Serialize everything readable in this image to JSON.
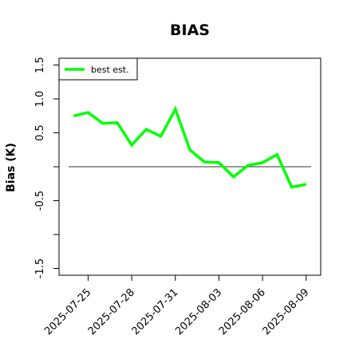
{
  "chart_data": {
    "type": "line",
    "title": "BIAS",
    "xlabel": "",
    "ylabel": "Bias (K)",
    "ylim": [
      -1.6,
      1.6
    ],
    "yticks": [
      -1.5,
      -1.0,
      -0.5,
      0.0,
      0.5,
      1.0,
      1.5
    ],
    "ytick_labels": [
      "-1.5",
      "",
      "-0.5",
      "",
      "0.5",
      "1.0",
      "1.5"
    ],
    "xlim": [
      "2025-07-23",
      "2025-08-10"
    ],
    "xticks": [
      "2025-07-25",
      "2025-07-28",
      "2025-07-31",
      "2025-08-03",
      "2025-08-06",
      "2025-08-09"
    ],
    "reference_line": 0,
    "legend": {
      "position": "top-left"
    },
    "series": [
      {
        "name": "best est.",
        "color": "#00ff00",
        "x": [
          "2025-07-24",
          "2025-07-25",
          "2025-07-26",
          "2025-07-27",
          "2025-07-28",
          "2025-07-29",
          "2025-07-30",
          "2025-07-31",
          "2025-08-01",
          "2025-08-02",
          "2025-08-03",
          "2025-08-04",
          "2025-08-05",
          "2025-08-06",
          "2025-08-07",
          "2025-08-08",
          "2025-08-09"
        ],
        "y": [
          0.75,
          0.8,
          0.64,
          0.65,
          0.32,
          0.55,
          0.45,
          0.85,
          0.25,
          0.07,
          0.06,
          -0.15,
          0.02,
          0.06,
          0.18,
          -0.3,
          -0.26
        ]
      }
    ]
  }
}
